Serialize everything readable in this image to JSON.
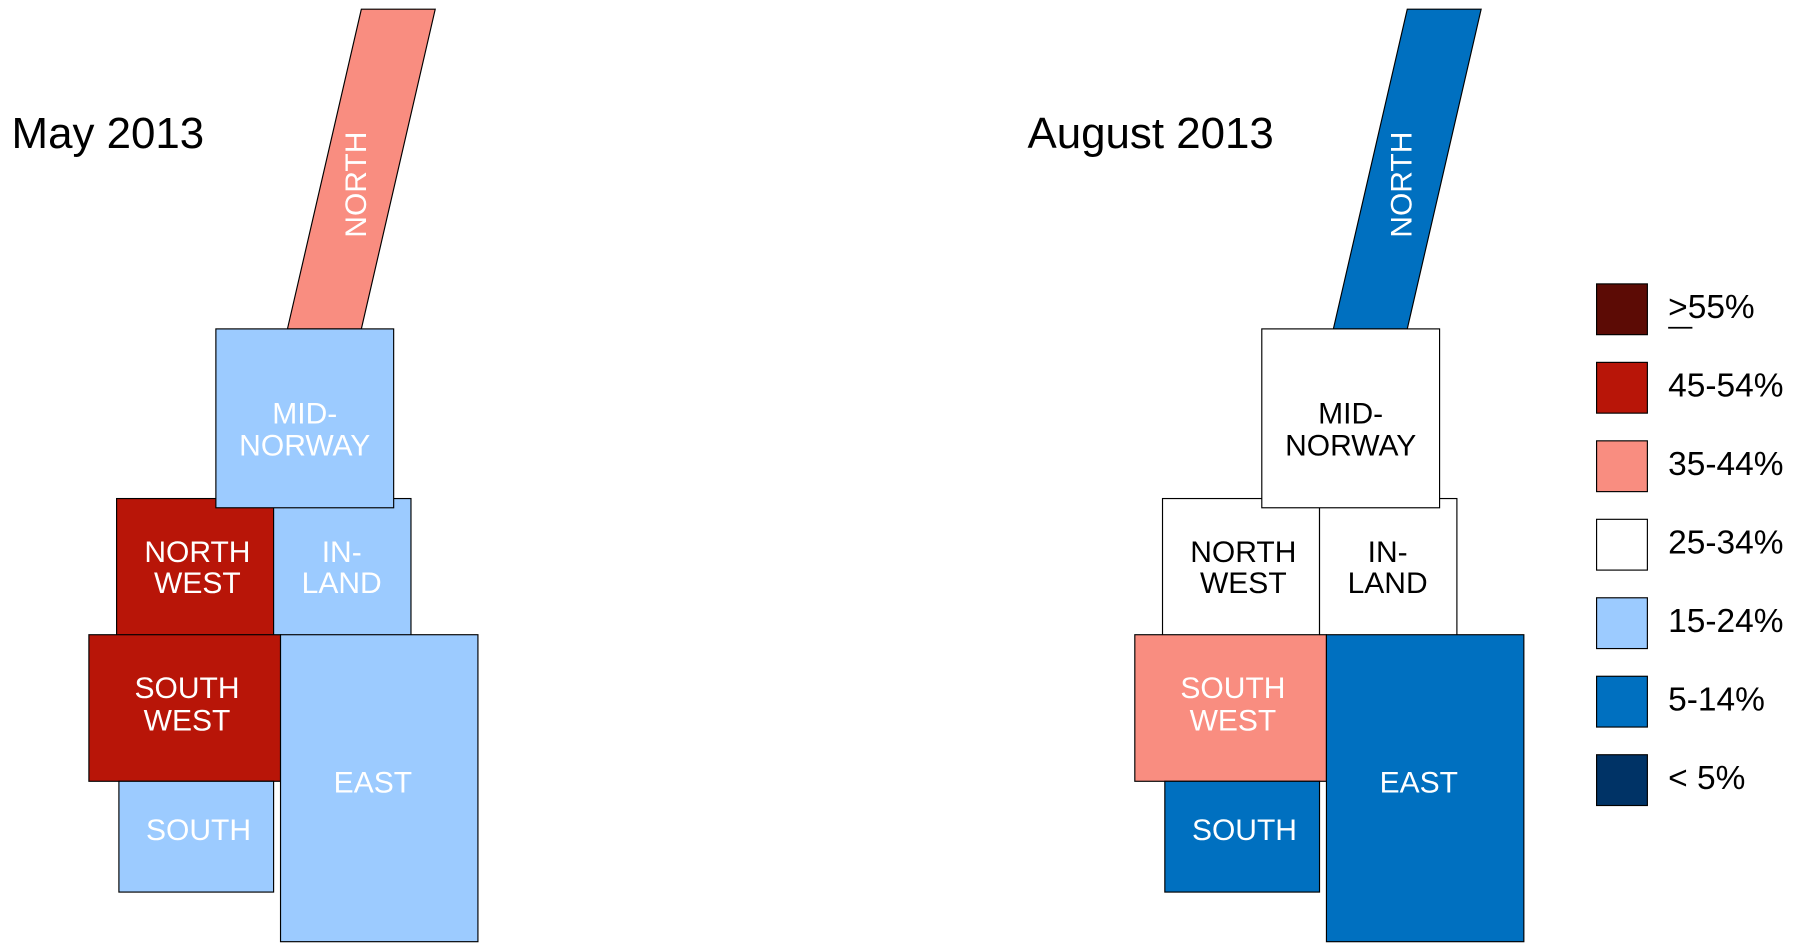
{
  "maps": [
    {
      "title": "May 2013",
      "regions": [
        {
          "label": [
            "NORTH"
          ],
          "color": "#f98d80"
        },
        {
          "label": [
            "NORTH",
            "WEST"
          ],
          "color": "#b81508"
        },
        {
          "label": [
            "IN-",
            "LAND"
          ],
          "color": "#9ccbff"
        },
        {
          "label": [
            "MID-",
            "NORWAY"
          ],
          "color": "#9ccbff"
        },
        {
          "label": [
            "SOUTH",
            "WEST"
          ],
          "color": "#b81508"
        },
        {
          "label": [
            "SOUTH"
          ],
          "color": "#9ccbff"
        },
        {
          "label": [
            "EAST"
          ],
          "color": "#9ccbff"
        }
      ]
    },
    {
      "title": "August 2013",
      "regions": [
        {
          "label": [
            "NORTH"
          ],
          "color": "#0070c0"
        },
        {
          "label": [
            "NORTH",
            "WEST"
          ],
          "color": "#ffffff"
        },
        {
          "label": [
            "IN-",
            "LAND"
          ],
          "color": "#ffffff"
        },
        {
          "label": [
            "MID-",
            "NORWAY"
          ],
          "color": "#ffffff"
        },
        {
          "label": [
            "SOUTH",
            "WEST"
          ],
          "color": "#f98d80"
        },
        {
          "label": [
            "SOUTH"
          ],
          "color": "#0070c0"
        },
        {
          "label": [
            "EAST"
          ],
          "color": "#0070c0"
        }
      ]
    }
  ],
  "legend": [
    {
      "label": ">55%",
      "color": "#5c0b05"
    },
    {
      "label": "45-54%",
      "color": "#b81508"
    },
    {
      "label": "35-44%",
      "color": "#f98d80"
    },
    {
      "label": "25-34%",
      "color": "#ffffff"
    },
    {
      "label": "15-24%",
      "color": "#9ccbff"
    },
    {
      "label": "5-14%",
      "color": "#0070c0"
    },
    {
      "label": "< 5%",
      "color": "#003366"
    }
  ]
}
